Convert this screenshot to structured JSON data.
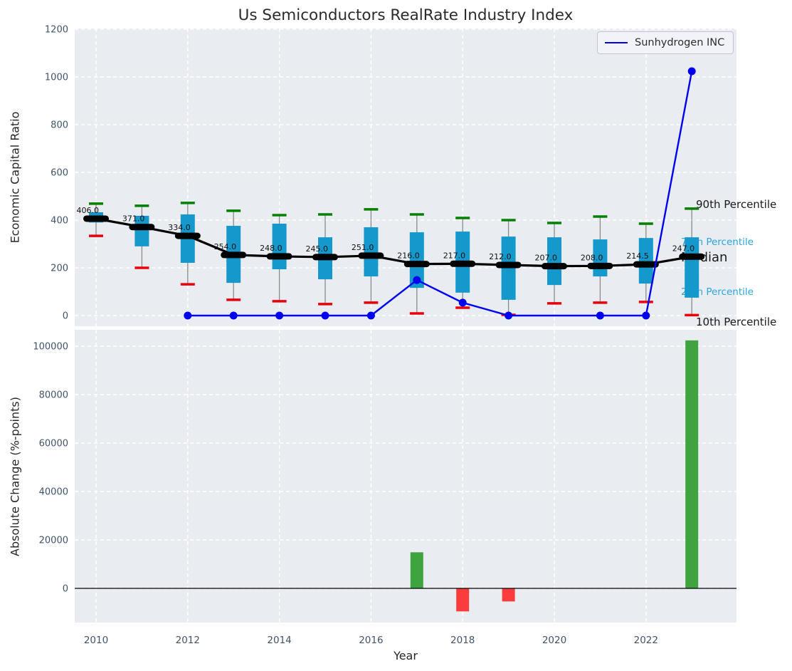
{
  "title": "Us Semiconductors RealRate Industry Index",
  "colors": {
    "plot_background": "#e9edf2",
    "grid": "#ffffff",
    "box_fill": "#1598cb",
    "whisker": "#8a8a8a",
    "p90_cap": "#008000",
    "p10_cap": "#e8000b",
    "median_line": "#000000",
    "company_line": "#0000f0",
    "tick_label": "#41536b",
    "annotation_cyan": "#2aa5db",
    "annotation_black": "#1a1a1a",
    "bar_positive": "#3fa43f",
    "bar_negative": "#fc3c3c",
    "zero_line": "#000000"
  },
  "chart_data": [
    {
      "type": "boxplot+line",
      "title": "Us Semiconductors RealRate Industry Index",
      "ylabel": "Economic Capital Ratio",
      "xlabel": "",
      "ylim": [
        -45,
        1205
      ],
      "yticks": [
        0,
        200,
        400,
        600,
        800,
        1000,
        1200
      ],
      "xticks": [
        2010,
        2012,
        2014,
        2016,
        2018,
        2020,
        2022
      ],
      "grid": true,
      "legend": {
        "label": "Sunhydrogen INC",
        "position": "upper right"
      },
      "years": [
        2010,
        2011,
        2012,
        2013,
        2014,
        2015,
        2016,
        2017,
        2018,
        2019,
        2020,
        2021,
        2022,
        2023
      ],
      "series": [
        {
          "name": "90th Percentile",
          "values": [
            469,
            460,
            472,
            439,
            421,
            424,
            445,
            424,
            409,
            400,
            388,
            415,
            385,
            448
          ]
        },
        {
          "name": "75th Percentile",
          "values": [
            433,
            418,
            424,
            376,
            385,
            328,
            370,
            349,
            352,
            331,
            328,
            319,
            325,
            328
          ]
        },
        {
          "name": "Median",
          "values": [
            406,
            371,
            334,
            254,
            248,
            245,
            251,
            216,
            217,
            212,
            207,
            208,
            214.5,
            247
          ]
        },
        {
          "name": "25th Percentile",
          "values": [
            390,
            290,
            221,
            137,
            194,
            152,
            164,
            116,
            96,
            66,
            128,
            164,
            134,
            75
          ]
        },
        {
          "name": "10th Percentile",
          "values": [
            334,
            200,
            131,
            66,
            60,
            48,
            54,
            9,
            33,
            3,
            51,
            54,
            57,
            2
          ]
        }
      ],
      "median_labels": [
        "406.0",
        "371.0",
        "334.0",
        "254.0",
        "248.0",
        "245.0",
        "251.0",
        "216.0",
        "217.0",
        "212.0",
        "207.0",
        "208.0",
        "214.5",
        "247.0"
      ],
      "company_line": {
        "name": "Sunhydrogen INC",
        "points": [
          [
            2012,
            0
          ],
          [
            2013,
            0
          ],
          [
            2014,
            0
          ],
          [
            2015,
            0
          ],
          [
            2016,
            0
          ],
          [
            2017,
            149
          ],
          [
            2018,
            54
          ],
          [
            2019,
            0
          ],
          [
            2021,
            0
          ],
          [
            2022,
            0
          ],
          [
            2023,
            1024
          ]
        ]
      },
      "right_annotations": [
        {
          "text": "90th Percentile",
          "value": 451,
          "color": "black",
          "size": "large"
        },
        {
          "text": "75th Percentile",
          "value": 296,
          "color": "cyan",
          "size": "small"
        },
        {
          "text": "Median",
          "value": 227,
          "color": "black",
          "size": "xlarge"
        },
        {
          "text": "25th Percentile",
          "value": 87,
          "color": "cyan",
          "size": "small"
        },
        {
          "text": "10th Percentile",
          "value": -42,
          "color": "black",
          "size": "large"
        }
      ]
    },
    {
      "type": "bar",
      "ylabel": "Absolute Change (%-points)",
      "xlabel": "Year",
      "ylim": [
        -14100,
        106800
      ],
      "yticks": [
        0,
        20000,
        40000,
        60000,
        80000,
        100000
      ],
      "xticks": [
        2010,
        2012,
        2014,
        2016,
        2018,
        2020,
        2022
      ],
      "grid": true,
      "categories": [
        2017,
        2018,
        2019,
        2023
      ],
      "values": [
        14900,
        -9500,
        -5400,
        102400
      ],
      "bars": [
        {
          "year": 2017,
          "value": 14900
        },
        {
          "year": 2018,
          "value": -9500
        },
        {
          "year": 2019,
          "value": -5400
        },
        {
          "year": 2023,
          "value": 102400
        }
      ]
    }
  ]
}
